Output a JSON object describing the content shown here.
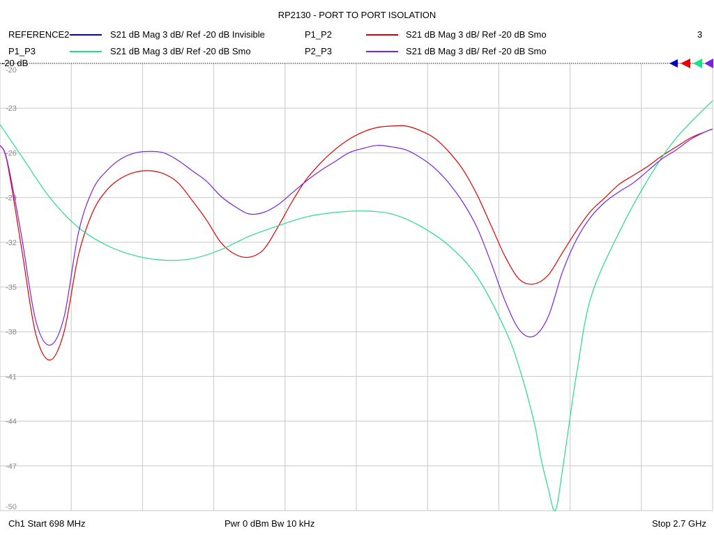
{
  "title": "RP2130 - PORT TO PORT ISOLATION",
  "legend": [
    {
      "name": "REFERENCE2",
      "desc": "S21  dB Mag  3 dB/ Ref -20 dB  Invisible",
      "color": "#0000cc"
    },
    {
      "name": "P1_P2",
      "desc": "S21  dB Mag  3 dB/ Ref -20 dB  Smo",
      "color": "#dd0000"
    },
    {
      "name": "P1_P3",
      "desc": "S21  dB Mag  3 dB/ Ref -20 dB  Smo",
      "color": "#22dd88"
    },
    {
      "name": "P2_P3",
      "desc": "S21  dB Mag  3 dB/ Ref -20 dB  Smo",
      "color": "#7a22e0"
    }
  ],
  "marker_count": "3",
  "ref_label": "-20 dB",
  "footer": {
    "start": "Ch1  Start  698 MHz",
    "power": "Pwr  0 dBm  Bw  10 kHz",
    "stop": "Stop  2.7 GHz"
  },
  "chart_data": {
    "type": "line",
    "x_unit": "MHz",
    "xlim": [
      698,
      2700
    ],
    "ylim": [
      -50,
      -20
    ],
    "yticks": [
      -20,
      -23,
      -26,
      -29,
      -32,
      -35,
      -38,
      -41,
      -44,
      -47,
      -50
    ],
    "grid": true,
    "series": [
      {
        "name": "P1_P2",
        "color": "#dd0000",
        "x": [
          698,
          718,
          758,
          798,
          838,
          878,
          918,
          958,
          998,
          1038,
          1078,
          1118,
          1158,
          1198,
          1238,
          1278,
          1318,
          1358,
          1398,
          1438,
          1478,
          1518,
          1558,
          1598,
          1638,
          1678,
          1718,
          1758,
          1798,
          1838,
          1878,
          1918,
          1958,
          1998,
          2038,
          2078,
          2118,
          2158,
          2198,
          2238,
          2278,
          2318,
          2358,
          2398,
          2438,
          2478,
          2518,
          2558,
          2598,
          2638,
          2678,
          2700
        ],
        "y": [
          -25.5,
          -26.6,
          -32.3,
          -38.1,
          -39.9,
          -38.0,
          -32.9,
          -30.0,
          -28.5,
          -27.7,
          -27.3,
          -27.2,
          -27.4,
          -28.0,
          -29.2,
          -30.5,
          -32.0,
          -32.8,
          -33.0,
          -32.5,
          -31.0,
          -29.3,
          -27.8,
          -26.7,
          -25.8,
          -25.1,
          -24.6,
          -24.3,
          -24.2,
          -24.2,
          -24.5,
          -25.0,
          -25.9,
          -27.1,
          -28.8,
          -30.9,
          -33.0,
          -34.5,
          -34.8,
          -34.2,
          -32.7,
          -31.2,
          -29.9,
          -29.0,
          -28.1,
          -27.5,
          -26.9,
          -26.2,
          -25.6,
          -25.0,
          -24.6,
          -24.4
        ]
      },
      {
        "name": "P1_P3",
        "color": "#22dd88",
        "x": [
          698,
          758,
          838,
          918,
          998,
          1078,
          1158,
          1238,
          1318,
          1398,
          1478,
          1558,
          1638,
          1718,
          1798,
          1878,
          1958,
          2038,
          2118,
          2158,
          2198,
          2218,
          2238,
          2258,
          2278,
          2298,
          2318,
          2358,
          2438,
          2518,
          2598,
          2700
        ],
        "y": [
          -24.1,
          -26.2,
          -29.0,
          -31.0,
          -32.2,
          -32.9,
          -33.2,
          -33.1,
          -32.5,
          -31.6,
          -30.9,
          -30.3,
          -30.0,
          -29.9,
          -30.1,
          -30.9,
          -32.2,
          -34.3,
          -37.9,
          -40.5,
          -44.0,
          -46.5,
          -48.5,
          -50.0,
          -47.3,
          -44.0,
          -40.8,
          -35.7,
          -31.3,
          -27.8,
          -25.0,
          -22.5
        ]
      },
      {
        "name": "P2_P3",
        "color": "#7a22e0",
        "x": [
          698,
          718,
          758,
          798,
          838,
          878,
          918,
          958,
          998,
          1038,
          1078,
          1118,
          1158,
          1198,
          1238,
          1278,
          1318,
          1358,
          1398,
          1438,
          1478,
          1518,
          1558,
          1598,
          1638,
          1678,
          1718,
          1758,
          1798,
          1838,
          1878,
          1918,
          1958,
          1998,
          2038,
          2078,
          2118,
          2158,
          2198,
          2238,
          2278,
          2318,
          2358,
          2398,
          2438,
          2478,
          2518,
          2558,
          2598,
          2638,
          2678,
          2700
        ],
        "y": [
          -25.5,
          -26.5,
          -31.5,
          -37.2,
          -38.9,
          -37.0,
          -31.4,
          -28.5,
          -27.2,
          -26.4,
          -26.0,
          -25.9,
          -26.0,
          -26.5,
          -27.2,
          -27.9,
          -28.9,
          -29.6,
          -30.1,
          -30.0,
          -29.5,
          -28.7,
          -27.9,
          -27.2,
          -26.6,
          -26.0,
          -25.7,
          -25.5,
          -25.6,
          -25.8,
          -26.3,
          -27.0,
          -28.0,
          -29.3,
          -31.0,
          -33.4,
          -36.0,
          -37.9,
          -38.3,
          -37.0,
          -34.0,
          -31.8,
          -30.3,
          -29.3,
          -28.6,
          -28.0,
          -27.2,
          -26.4,
          -25.8,
          -25.1,
          -24.6,
          -24.4
        ]
      }
    ]
  }
}
